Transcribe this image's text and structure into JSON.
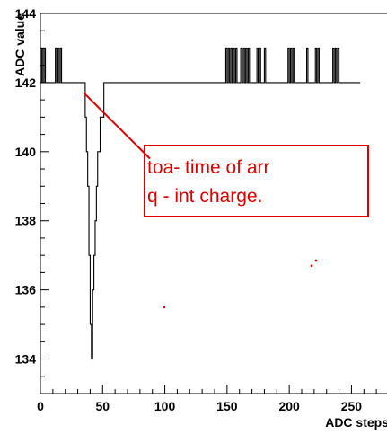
{
  "chart_data": {
    "type": "line",
    "title": "",
    "xlabel": "ADC steps",
    "ylabel": "ADC value",
    "xlim": [
      0,
      280
    ],
    "ylim": [
      133,
      144
    ],
    "x_ticks": [
      0,
      50,
      100,
      150,
      200,
      250
    ],
    "y_ticks": [
      134,
      136,
      138,
      140,
      142,
      144
    ],
    "grid": false,
    "series": [
      {
        "color": "#000000",
        "x": [
          0,
          1,
          2,
          3,
          4,
          5,
          6,
          7,
          8,
          9,
          10,
          11,
          12,
          13,
          14,
          15,
          16,
          17,
          18,
          19,
          20,
          21,
          22,
          23,
          24,
          25,
          26,
          27,
          28,
          29,
          30,
          31,
          32,
          33,
          34,
          35,
          36,
          37,
          38,
          39,
          40,
          41,
          42,
          43,
          44,
          45,
          46,
          47,
          48,
          49,
          50,
          51,
          52,
          53,
          54,
          55,
          56,
          57,
          58,
          59,
          60,
          61,
          62,
          63,
          64,
          65,
          66,
          67,
          68,
          69,
          70,
          71,
          72,
          73,
          74,
          75,
          76,
          77,
          78,
          79,
          80,
          81,
          82,
          83,
          84,
          85,
          86,
          87,
          88,
          89,
          90,
          91,
          92,
          93,
          94,
          95,
          96,
          97,
          98,
          99,
          100,
          101,
          102,
          103,
          104,
          105,
          106,
          107,
          108,
          109,
          110,
          111,
          112,
          113,
          114,
          115,
          116,
          117,
          118,
          119,
          120,
          121,
          122,
          123,
          124,
          125,
          126,
          127,
          128,
          129,
          130,
          131,
          132,
          133,
          134,
          135,
          136,
          137,
          138,
          139,
          140,
          141,
          142,
          143,
          144,
          145,
          146,
          147,
          148,
          149,
          150,
          151,
          152,
          153,
          154,
          155,
          156,
          157,
          158,
          159,
          160,
          161,
          162,
          163,
          164,
          165,
          166,
          167,
          168,
          169,
          170,
          171,
          172,
          173,
          174,
          175,
          176,
          177,
          178,
          179,
          180,
          181,
          182,
          183,
          184,
          185,
          186,
          187,
          188,
          189,
          190,
          191,
          192,
          193,
          194,
          195,
          196,
          197,
          198,
          199,
          200,
          201,
          202,
          203,
          204,
          205,
          206,
          207,
          208,
          209,
          210,
          211,
          212,
          213,
          214,
          215,
          216,
          217,
          218,
          219,
          220,
          221,
          222,
          223,
          224,
          225,
          226,
          227,
          228,
          229,
          230,
          231,
          232,
          233,
          234,
          235,
          236,
          237,
          238,
          239,
          240,
          241,
          242,
          243,
          244,
          245,
          246,
          247,
          248,
          249,
          250,
          251,
          252,
          253,
          254,
          255,
          256
        ],
        "y": [
          142,
          143,
          142,
          143,
          142,
          142,
          142,
          142,
          142,
          142,
          142,
          142,
          143,
          142,
          143,
          142,
          143,
          142,
          142,
          142,
          142,
          142,
          142,
          142,
          142,
          142,
          142,
          142,
          142,
          142,
          142,
          142,
          142,
          142,
          142,
          142,
          141,
          140,
          139,
          137,
          135,
          134,
          136,
          137,
          138,
          139,
          140,
          140,
          141,
          141,
          141,
          142,
          142,
          142,
          142,
          142,
          142,
          142,
          142,
          142,
          142,
          142,
          142,
          142,
          142,
          142,
          142,
          142,
          142,
          142,
          142,
          142,
          142,
          142,
          142,
          142,
          142,
          142,
          142,
          142,
          142,
          142,
          142,
          142,
          142,
          142,
          142,
          142,
          142,
          142,
          142,
          142,
          142,
          142,
          142,
          142,
          142,
          142,
          142,
          142,
          142,
          142,
          142,
          142,
          142,
          142,
          142,
          142,
          142,
          142,
          142,
          142,
          142,
          142,
          142,
          142,
          142,
          142,
          142,
          142,
          142,
          142,
          142,
          142,
          142,
          142,
          142,
          142,
          142,
          142,
          142,
          142,
          142,
          142,
          142,
          142,
          142,
          142,
          142,
          142,
          142,
          142,
          142,
          142,
          142,
          142,
          142,
          142,
          142,
          143,
          142,
          143,
          142,
          143,
          142,
          143,
          142,
          143,
          142,
          142,
          142,
          143,
          142,
          143,
          142,
          143,
          142,
          143,
          142,
          142,
          142,
          142,
          142,
          142,
          143,
          142,
          143,
          142,
          142,
          142,
          143,
          142,
          142,
          142,
          142,
          142,
          142,
          142,
          142,
          142,
          142,
          142,
          142,
          142,
          142,
          142,
          142,
          142,
          142,
          143,
          142,
          143,
          142,
          143,
          142,
          142,
          142,
          142,
          142,
          142,
          142,
          142,
          142,
          142,
          143,
          142,
          142,
          142,
          142,
          142,
          142,
          143,
          142,
          143,
          142,
          142,
          142,
          142,
          142,
          142,
          142,
          142,
          142,
          142,
          142,
          143,
          142,
          143,
          142,
          143,
          142,
          142,
          142,
          142,
          142,
          142,
          142,
          142,
          142,
          142,
          142,
          142,
          142,
          142,
          142,
          142,
          142
        ]
      }
    ],
    "annotations": {
      "lines": [
        "toa- time of arr",
        "q - int charge."
      ],
      "border_color": "#e00000",
      "arrow_from_data": [
        88,
        139.8
      ],
      "arrow_to_data": [
        35,
        141.7
      ],
      "dots_data": [
        [
          99.5,
          135.5
        ],
        [
          218,
          136.7
        ],
        [
          221.5,
          136.85
        ]
      ]
    }
  }
}
